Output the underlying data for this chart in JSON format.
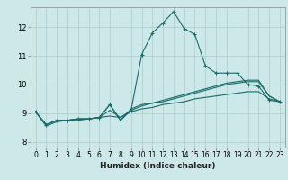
{
  "title": "",
  "xlabel": "Humidex (Indice chaleur)",
  "background_color": "#cce8e8",
  "grid_color": "#aacccc",
  "line_color": "#1a6b6b",
  "xlim": [
    -0.5,
    23.5
  ],
  "ylim": [
    7.8,
    12.7
  ],
  "xticks": [
    0,
    1,
    2,
    3,
    4,
    5,
    6,
    7,
    8,
    9,
    10,
    11,
    12,
    13,
    14,
    15,
    16,
    17,
    18,
    19,
    20,
    21,
    22,
    23
  ],
  "yticks": [
    8,
    9,
    10,
    11,
    12
  ],
  "smooth_x": [
    0,
    1,
    2,
    3,
    4,
    5,
    6,
    7,
    8,
    9,
    10,
    11,
    12,
    13,
    14,
    15,
    16,
    17,
    18,
    19,
    20,
    21,
    22,
    23
  ],
  "smooth_y1": [
    9.05,
    8.6,
    8.75,
    8.75,
    8.8,
    8.8,
    8.85,
    9.3,
    8.75,
    9.1,
    11.05,
    11.8,
    12.15,
    12.55,
    11.95,
    11.75,
    10.65,
    10.4,
    10.4,
    10.4,
    10.0,
    9.95,
    9.45,
    9.4
  ],
  "smooth_y2": [
    9.05,
    8.6,
    8.75,
    8.75,
    8.8,
    8.8,
    8.85,
    9.3,
    8.75,
    9.15,
    9.3,
    9.35,
    9.4,
    9.5,
    9.6,
    9.7,
    9.8,
    9.9,
    10.0,
    10.05,
    10.1,
    10.1,
    9.6,
    9.4
  ],
  "smooth_y3": [
    9.05,
    8.6,
    8.75,
    8.75,
    8.8,
    8.8,
    8.85,
    9.1,
    8.85,
    9.1,
    9.25,
    9.35,
    9.45,
    9.55,
    9.65,
    9.75,
    9.85,
    9.95,
    10.05,
    10.1,
    10.15,
    10.15,
    9.6,
    9.4
  ],
  "smooth_y4": [
    9.05,
    8.55,
    8.7,
    8.75,
    8.75,
    8.8,
    8.85,
    8.9,
    8.85,
    9.05,
    9.15,
    9.2,
    9.3,
    9.35,
    9.4,
    9.5,
    9.55,
    9.6,
    9.65,
    9.7,
    9.75,
    9.75,
    9.5,
    9.4
  ],
  "marker_x": [
    0,
    1,
    2,
    3,
    4,
    5,
    6,
    7,
    8,
    9,
    10,
    11,
    12,
    13,
    14,
    15,
    16,
    17,
    18,
    19,
    20,
    21,
    22,
    23
  ],
  "marker_y": [
    9.05,
    8.6,
    8.75,
    8.75,
    8.8,
    8.8,
    8.85,
    9.3,
    8.75,
    9.1,
    11.05,
    11.8,
    12.15,
    12.55,
    11.95,
    11.75,
    10.65,
    10.4,
    10.4,
    10.4,
    10.0,
    9.95,
    9.45,
    9.4
  ]
}
